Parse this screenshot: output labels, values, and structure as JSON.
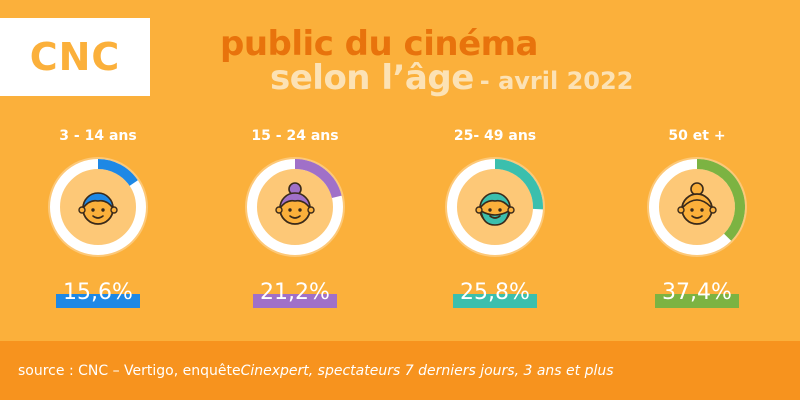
{
  "logo": {
    "text": "CNC"
  },
  "title": {
    "line1": "public du cinéma",
    "line2": "selon l’âge",
    "date": "- avril 2022"
  },
  "chart_data": {
    "type": "pie",
    "title": "public du cinéma selon l’âge - avril 2022",
    "categories": [
      "3 - 14 ans",
      "15 - 24 ans",
      "25- 49 ans",
      "50 et +"
    ],
    "values": [
      15.6,
      21.2,
      25.8,
      37.4
    ],
    "value_labels": [
      "15,6%",
      "21,2%",
      "25,8%",
      "37,4%"
    ],
    "colors": [
      "#1E88E5",
      "#A070C8",
      "#3BBFAD",
      "#7CB342"
    ],
    "icons": [
      "boy-face-icon",
      "woman-bun-face-icon",
      "bearded-man-face-icon",
      "elderly-woman-face-icon"
    ]
  },
  "footer": {
    "prefix": "source : CNC – Vertigo, enquête ",
    "italic": "Cinexpert, spectateurs 7 derniers jours, 3 ans et plus"
  }
}
